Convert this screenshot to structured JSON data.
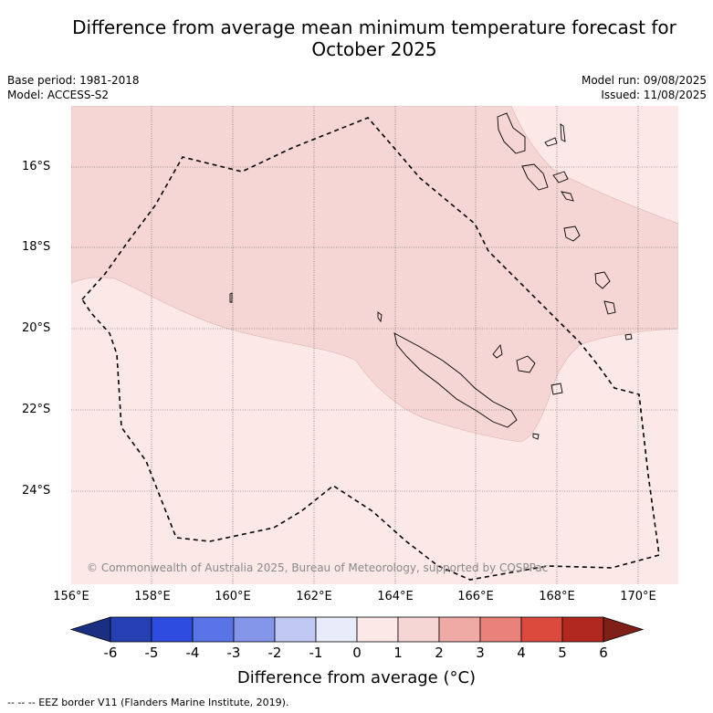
{
  "title_line1": "Difference from average mean minimum temperature forecast for",
  "title_line2": "October 2025",
  "base_period": "Base period: 1981-2018",
  "model": "Model: ACCESS-S2",
  "model_run": "Model run: 09/08/2025",
  "issued": "Issued: 11/08/2025",
  "copyright": "© Commonwealth of Australia 2025, Bureau of Meteorology, supported by COSPPac",
  "lat_labels": [
    "16°S",
    "18°S",
    "20°S",
    "22°S",
    "24°S"
  ],
  "lon_labels": [
    "156°E",
    "158°E",
    "160°E",
    "162°E",
    "164°E",
    "166°E",
    "168°E",
    "170°E"
  ],
  "colorbar": {
    "ticks": [
      "-6",
      "-5",
      "-4",
      "-3",
      "-2",
      "-1",
      "0",
      "1",
      "2",
      "3",
      "4",
      "5",
      "6"
    ],
    "label": "Difference from average (°C)",
    "colors": [
      "#1a2f82",
      "#2540b3",
      "#2e4de0",
      "#5874e6",
      "#8396ea",
      "#c0c8f4",
      "#e8ecfa",
      "#fce9e7",
      "#f6d6d4",
      "#efaaa6",
      "#e8827a",
      "#dc4a3e",
      "#b0281f",
      "#7e1f18"
    ]
  },
  "legend_footer": "-- -- -- EEZ border V11 (Flanders Marine Institute, 2019).",
  "map": {
    "fill_low": "#fce9e7",
    "fill_mid": "#f6d6d4"
  }
}
